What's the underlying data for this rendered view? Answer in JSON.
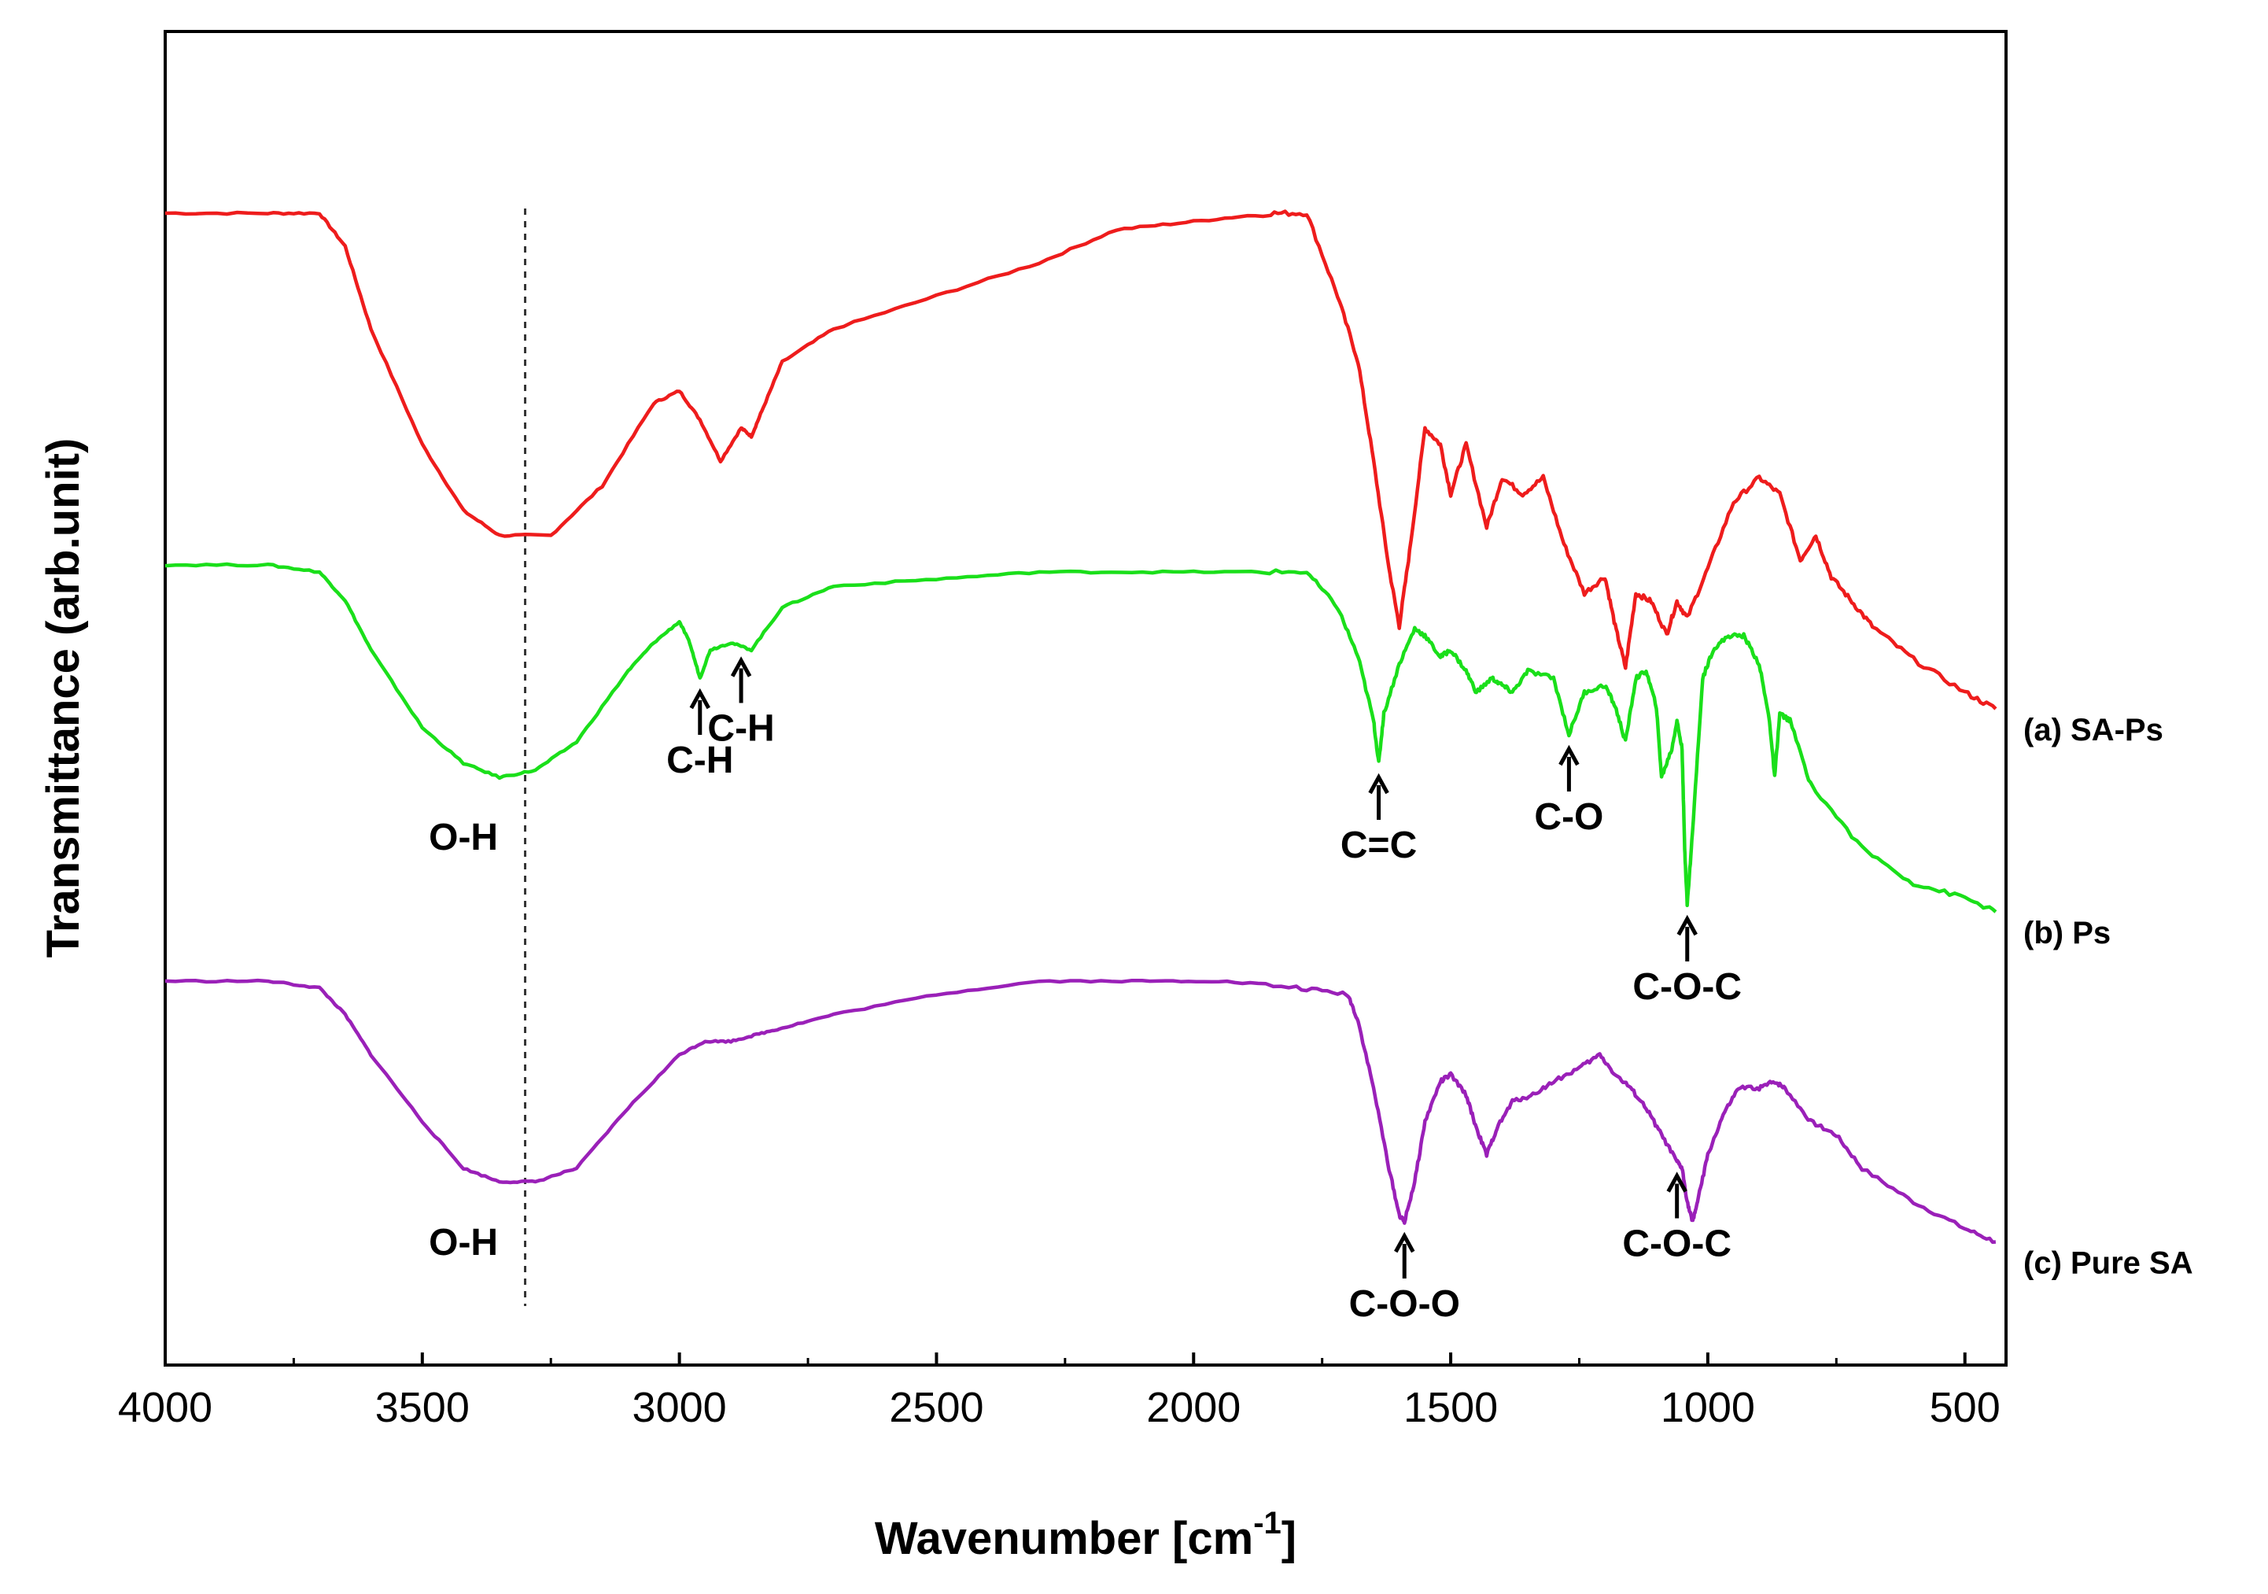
{
  "chart_data": {
    "type": "line",
    "title": "",
    "xlabel": "Wavenumber [cm-1]",
    "xlabel_main": "Wavenumber [cm",
    "xlabel_sup": "-1",
    "xlabel_close": "]",
    "ylabel": "Transmittance (arb.unit)",
    "xlim": [
      4000,
      420
    ],
    "x_reversed": true,
    "y_ticks_shown": false,
    "grid": false,
    "x_ticks": [
      4000,
      3500,
      3000,
      2500,
      2000,
      1500,
      1000,
      500
    ],
    "x_tick_labels": [
      "4000",
      "3500",
      "3000",
      "2500",
      "2000",
      "1500",
      "1000",
      "500"
    ],
    "reference_line": {
      "x": 3300,
      "style": "dotted"
    },
    "series": [
      {
        "name": "(a) SA-Ps",
        "color": "#ee1c1c",
        "points": [
          [
            4000,
            98
          ],
          [
            3800,
            98
          ],
          [
            3700,
            98
          ],
          [
            3650,
            94
          ],
          [
            3600,
            84
          ],
          [
            3500,
            70
          ],
          [
            3420,
            62
          ],
          [
            3350,
            59
          ],
          [
            3250,
            59
          ],
          [
            3150,
            65
          ],
          [
            3050,
            75
          ],
          [
            3000,
            76.5
          ],
          [
            2960,
            73
          ],
          [
            2920,
            68
          ],
          [
            2880,
            72
          ],
          [
            2860,
            71
          ],
          [
            2840,
            74
          ],
          [
            2800,
            80
          ],
          [
            2700,
            84
          ],
          [
            2500,
            88
          ],
          [
            2300,
            92
          ],
          [
            2150,
            96
          ],
          [
            2000,
            97
          ],
          [
            1850,
            98
          ],
          [
            1780,
            98
          ],
          [
            1720,
            88
          ],
          [
            1680,
            80
          ],
          [
            1650,
            68
          ],
          [
            1620,
            55
          ],
          [
            1600,
            48
          ],
          [
            1580,
            57
          ],
          [
            1550,
            72
          ],
          [
            1520,
            70
          ],
          [
            1500,
            64
          ],
          [
            1470,
            70
          ],
          [
            1430,
            60
          ],
          [
            1400,
            66
          ],
          [
            1360,
            64
          ],
          [
            1320,
            66
          ],
          [
            1280,
            58
          ],
          [
            1240,
            52
          ],
          [
            1200,
            54
          ],
          [
            1180,
            48
          ],
          [
            1160,
            43
          ],
          [
            1140,
            52
          ],
          [
            1110,
            51
          ],
          [
            1080,
            47
          ],
          [
            1060,
            51
          ],
          [
            1040,
            49
          ],
          [
            1000,
            55
          ],
          [
            950,
            63
          ],
          [
            900,
            66
          ],
          [
            860,
            64
          ],
          [
            820,
            56
          ],
          [
            790,
            59
          ],
          [
            760,
            54
          ],
          [
            720,
            51
          ],
          [
            680,
            48
          ],
          [
            600,
            44
          ],
          [
            500,
            40
          ],
          [
            440,
            38
          ]
        ]
      },
      {
        "name": "(b) Ps",
        "color": "#1adf1a",
        "points": [
          [
            4000,
            98
          ],
          [
            3800,
            98
          ],
          [
            3700,
            97
          ],
          [
            3650,
            93
          ],
          [
            3600,
            86
          ],
          [
            3500,
            75
          ],
          [
            3420,
            70
          ],
          [
            3350,
            68
          ],
          [
            3280,
            69
          ],
          [
            3200,
            73
          ],
          [
            3100,
            83
          ],
          [
            3050,
            87
          ],
          [
            3000,
            90
          ],
          [
            2980,
            87
          ],
          [
            2960,
            82
          ],
          [
            2940,
            86
          ],
          [
            2900,
            87
          ],
          [
            2860,
            86
          ],
          [
            2800,
            92
          ],
          [
            2700,
            95
          ],
          [
            2500,
            96
          ],
          [
            2300,
            97
          ],
          [
            2100,
            97
          ],
          [
            1900,
            97
          ],
          [
            1780,
            97
          ],
          [
            1720,
            92
          ],
          [
            1680,
            85
          ],
          [
            1650,
            76
          ],
          [
            1640,
            70
          ],
          [
            1630,
            77
          ],
          [
            1600,
            84
          ],
          [
            1570,
            89
          ],
          [
            1550,
            88
          ],
          [
            1520,
            85
          ],
          [
            1500,
            86
          ],
          [
            1470,
            83
          ],
          [
            1450,
            80
          ],
          [
            1420,
            82
          ],
          [
            1400,
            81
          ],
          [
            1380,
            80
          ],
          [
            1350,
            83
          ],
          [
            1300,
            82
          ],
          [
            1270,
            74
          ],
          [
            1240,
            80
          ],
          [
            1200,
            81
          ],
          [
            1180,
            78
          ],
          [
            1160,
            73
          ],
          [
            1140,
            82
          ],
          [
            1120,
            83
          ],
          [
            1100,
            78
          ],
          [
            1090,
            68
          ],
          [
            1070,
            72
          ],
          [
            1060,
            76
          ],
          [
            1050,
            72
          ],
          [
            1045,
            58
          ],
          [
            1040,
            50
          ],
          [
            1030,
            60
          ],
          [
            1010,
            82
          ],
          [
            990,
            86
          ],
          [
            960,
            88
          ],
          [
            930,
            88
          ],
          [
            900,
            84
          ],
          [
            880,
            76
          ],
          [
            870,
            68
          ],
          [
            860,
            77
          ],
          [
            840,
            76
          ],
          [
            800,
            67
          ],
          [
            700,
            58
          ],
          [
            600,
            53
          ],
          [
            500,
            51
          ],
          [
            440,
            49
          ]
        ]
      },
      {
        "name": "(c) Pure SA",
        "color": "#9a20b8",
        "points": [
          [
            4000,
            98
          ],
          [
            3800,
            98
          ],
          [
            3700,
            97
          ],
          [
            3650,
            93
          ],
          [
            3600,
            87
          ],
          [
            3500,
            77
          ],
          [
            3420,
            70
          ],
          [
            3350,
            68
          ],
          [
            3280,
            68
          ],
          [
            3200,
            70
          ],
          [
            3100,
            79
          ],
          [
            3000,
            87
          ],
          [
            2950,
            89
          ],
          [
            2900,
            89
          ],
          [
            2850,
            90
          ],
          [
            2800,
            91
          ],
          [
            2700,
            93
          ],
          [
            2500,
            96
          ],
          [
            2300,
            98
          ],
          [
            2100,
            98
          ],
          [
            1950,
            98
          ],
          [
            1800,
            97
          ],
          [
            1700,
            96
          ],
          [
            1680,
            92
          ],
          [
            1650,
            82
          ],
          [
            1620,
            70
          ],
          [
            1600,
            63
          ],
          [
            1590,
            62
          ],
          [
            1570,
            68
          ],
          [
            1550,
            77
          ],
          [
            1520,
            83
          ],
          [
            1500,
            84
          ],
          [
            1470,
            81
          ],
          [
            1450,
            76
          ],
          [
            1430,
            72
          ],
          [
            1410,
            76
          ],
          [
            1380,
            80
          ],
          [
            1340,
            81
          ],
          [
            1300,
            83
          ],
          [
            1250,
            85
          ],
          [
            1210,
            87
          ],
          [
            1180,
            84
          ],
          [
            1150,
            82
          ],
          [
            1120,
            79
          ],
          [
            1090,
            75
          ],
          [
            1060,
            71
          ],
          [
            1050,
            70
          ],
          [
            1040,
            65
          ],
          [
            1030,
            62
          ],
          [
            1020,
            65
          ],
          [
            1000,
            72
          ],
          [
            970,
            78
          ],
          [
            940,
            82
          ],
          [
            900,
            82
          ],
          [
            870,
            83
          ],
          [
            850,
            82
          ],
          [
            800,
            77
          ],
          [
            750,
            75
          ],
          [
            700,
            70
          ],
          [
            600,
            65
          ],
          [
            500,
            61
          ],
          [
            440,
            59
          ]
        ]
      }
    ],
    "annotations": [
      {
        "label": "C-H",
        "series": 1,
        "x": 2960,
        "dir": "up"
      },
      {
        "label": "C-H",
        "series": 1,
        "x": 2880,
        "dir": "up"
      },
      {
        "label": "O-H",
        "series": 1,
        "x": 3420,
        "dir": "none"
      },
      {
        "label": "C=C",
        "series": 1,
        "x": 1640,
        "dir": "up"
      },
      {
        "label": "C-O",
        "series": 1,
        "x": 1270,
        "dir": "up"
      },
      {
        "label": "C-O-C",
        "series": 1,
        "x": 1040,
        "dir": "up"
      },
      {
        "label": "O-H",
        "series": 2,
        "x": 3420,
        "dir": "none"
      },
      {
        "label": "C-O-O",
        "series": 2,
        "x": 1590,
        "dir": "up"
      },
      {
        "label": "C-O-C",
        "series": 2,
        "x": 1060,
        "dir": "up"
      }
    ]
  }
}
